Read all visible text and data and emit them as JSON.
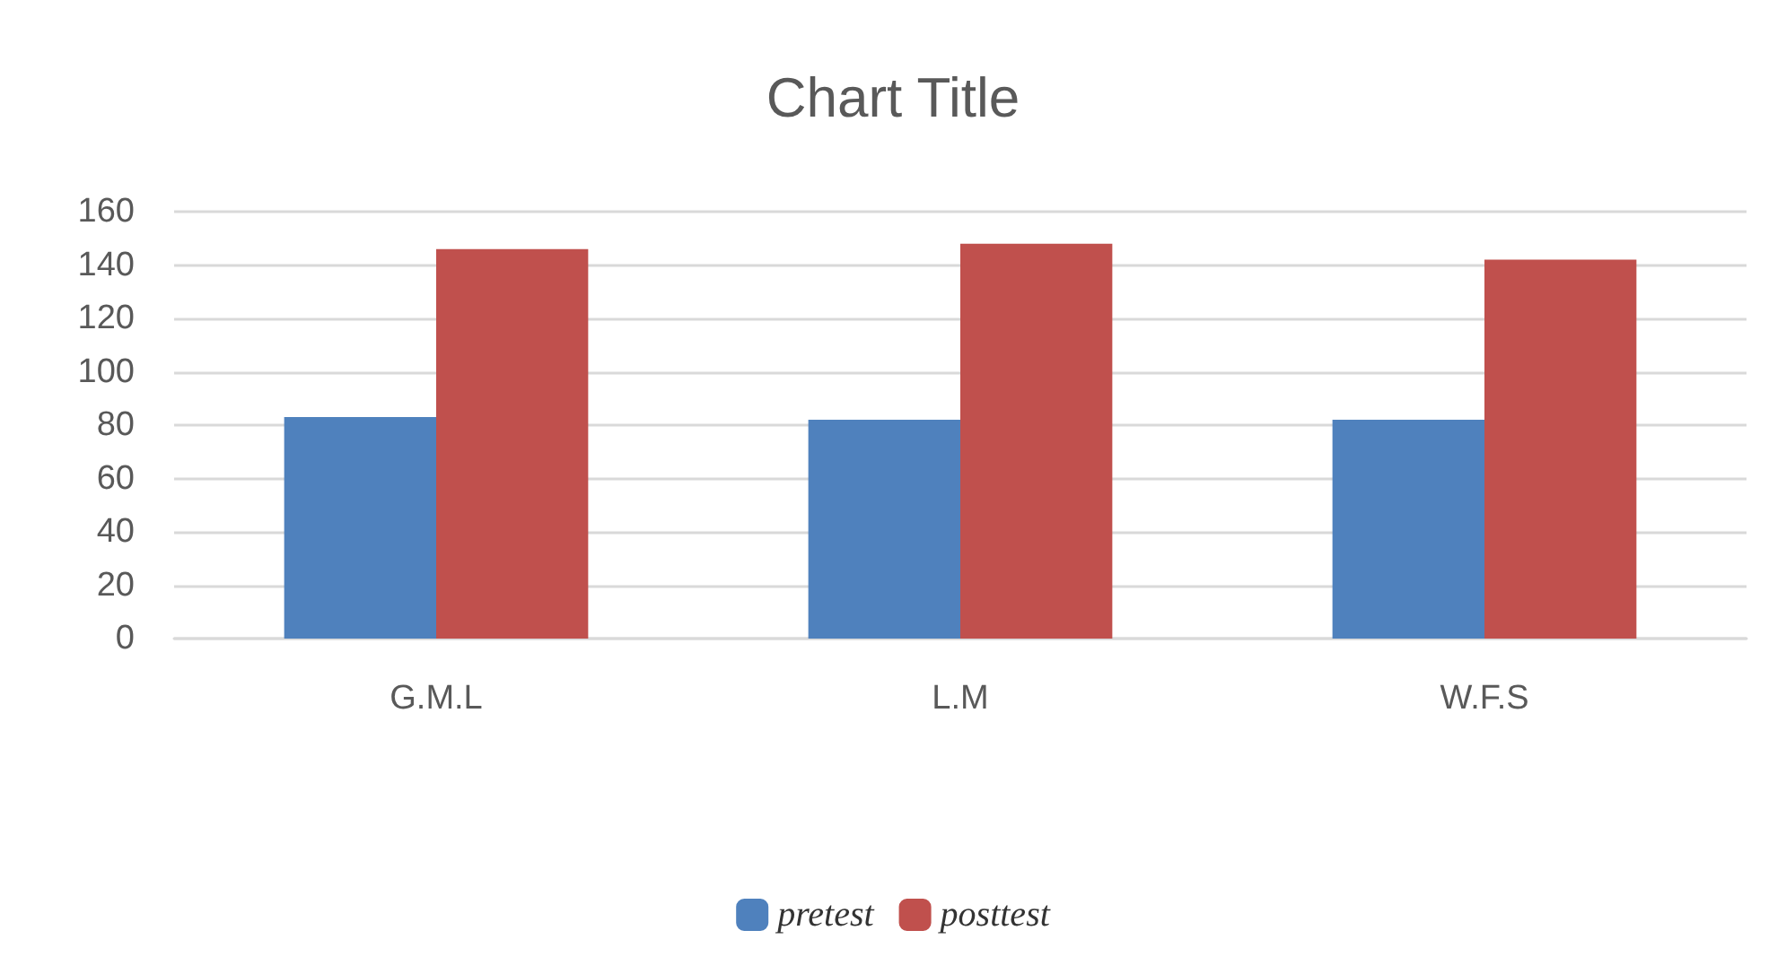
{
  "chart_data": {
    "type": "bar",
    "title": "Chart Title",
    "categories": [
      "G.M.L",
      "L.M",
      "W.F.S"
    ],
    "series": [
      {
        "name": "pretest",
        "color": "#4f81bd",
        "values": [
          83,
          82,
          82
        ]
      },
      {
        "name": "posttest",
        "color": "#c0504d",
        "values": [
          146,
          148,
          142
        ]
      }
    ],
    "ylim": [
      0,
      160
    ],
    "yticks": [
      0,
      20,
      40,
      60,
      80,
      100,
      120,
      140,
      160
    ],
    "grid": "y",
    "legend": "bottom"
  }
}
